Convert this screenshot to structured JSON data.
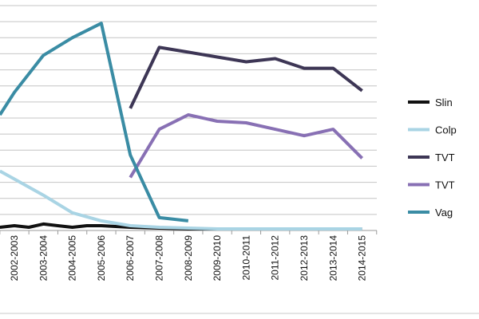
{
  "chart_data": {
    "type": "line",
    "title": "",
    "xlabel": "",
    "ylabel": "",
    "categories": [
      "2002-2003",
      "2003-2004",
      "2004-2005",
      "2005-2006",
      "2006-2007",
      "2007-2008",
      "2008-2009",
      "2009-2010",
      "2010-2011",
      "2011-2012",
      "2012-2013",
      "2013-2014",
      "2014-2015"
    ],
    "x_start_offset": -0.5,
    "ylim": [
      0,
      14
    ],
    "y_gridlines": [
      0,
      1,
      2,
      3,
      4,
      5,
      6,
      7,
      8,
      9,
      10,
      11,
      12,
      13,
      14
    ],
    "grid": true,
    "legend_position": "right",
    "series": [
      {
        "name": "Slin",
        "color": "#111111",
        "points": [
          [
            -0.5,
            0.2
          ],
          [
            0,
            0.3
          ],
          [
            0.5,
            0.2
          ],
          [
            1,
            0.4
          ],
          [
            1.5,
            0.3
          ],
          [
            2,
            0.2
          ],
          [
            2.5,
            0.3
          ],
          [
            3,
            0.3
          ],
          [
            3.5,
            0.25
          ],
          [
            4,
            0.2
          ],
          [
            5,
            0.15
          ],
          [
            6,
            0.1
          ],
          [
            7,
            0.1
          ],
          [
            8,
            0.1
          ],
          [
            9,
            0.1
          ],
          [
            10,
            0.1
          ],
          [
            11,
            0.1
          ],
          [
            12,
            0.1
          ]
        ]
      },
      {
        "name": "Colp",
        "color": "#a9d4e4",
        "points": [
          [
            -0.5,
            3.7
          ],
          [
            0,
            3.2
          ],
          [
            1,
            2.2
          ],
          [
            2,
            1.1
          ],
          [
            3,
            0.6
          ],
          [
            4,
            0.3
          ],
          [
            5,
            0.2
          ],
          [
            6,
            0.15
          ],
          [
            7,
            0.1
          ],
          [
            8,
            0.1
          ],
          [
            9,
            0.1
          ],
          [
            10,
            0.1
          ],
          [
            11,
            0.1
          ],
          [
            12,
            0.1
          ]
        ]
      },
      {
        "name": "TVT",
        "color": "#3d3655",
        "points": [
          [
            4,
            7.6
          ],
          [
            5,
            11.4
          ],
          [
            6,
            11.1
          ],
          [
            7,
            10.8
          ],
          [
            8,
            10.5
          ],
          [
            9,
            10.7
          ],
          [
            10,
            10.1
          ],
          [
            11,
            10.1
          ],
          [
            12,
            8.7
          ]
        ]
      },
      {
        "name": "TVT",
        "color": "#8870b4",
        "points": [
          [
            4,
            3.3
          ],
          [
            5,
            6.3
          ],
          [
            6,
            7.2
          ],
          [
            7,
            6.8
          ],
          [
            8,
            6.7
          ],
          [
            9,
            6.3
          ],
          [
            10,
            5.9
          ],
          [
            11,
            6.3
          ],
          [
            12,
            4.5
          ]
        ]
      },
      {
        "name": "Vag",
        "color": "#3a8ca4",
        "points": [
          [
            -0.5,
            7.2
          ],
          [
            0,
            8.6
          ],
          [
            1,
            10.9
          ],
          [
            2,
            12.0
          ],
          [
            3,
            12.9
          ],
          [
            4,
            4.7
          ],
          [
            5,
            0.8
          ],
          [
            6,
            0.6
          ]
        ]
      }
    ]
  },
  "legend": {
    "items": [
      {
        "label": "Slin",
        "color": "#111111"
      },
      {
        "label": "Colp",
        "color": "#a9d4e4"
      },
      {
        "label": "TVT",
        "color": "#3d3655"
      },
      {
        "label": "TVT",
        "color": "#8870b4"
      },
      {
        "label": "Vag",
        "color": "#3a8ca4"
      }
    ]
  }
}
